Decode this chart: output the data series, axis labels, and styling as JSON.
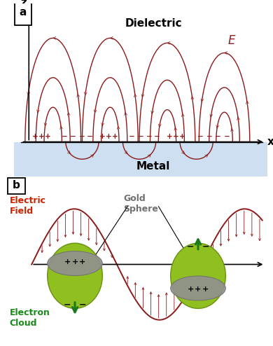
{
  "bg_color": "#ffffff",
  "panel_a": {
    "label": "a",
    "dielectric_label": "Dielectric",
    "metal_label": "Metal",
    "E_label": "E",
    "metal_color": "#cddff0",
    "arc_color": "#8b1a1a",
    "arc_color2": "#9b2020"
  },
  "panel_b": {
    "label": "b",
    "electric_field_label_1": "Electric",
    "electric_field_label_2": "Field",
    "gold_sphere_label_1": "Gold",
    "gold_sphere_label_2": "Sphere",
    "electron_cloud_label_1": "Electron",
    "electron_cloud_label_2": "Cloud",
    "sphere_green": "#90c020",
    "sphere_edge": "#6a9010",
    "sphere_gray": "#909090",
    "sine_color": "#8b1a1a",
    "green_arrow_color": "#1a7a1a",
    "label_red": "#cc2200",
    "label_green": "#1a8a1a",
    "label_gray": "#707070"
  }
}
